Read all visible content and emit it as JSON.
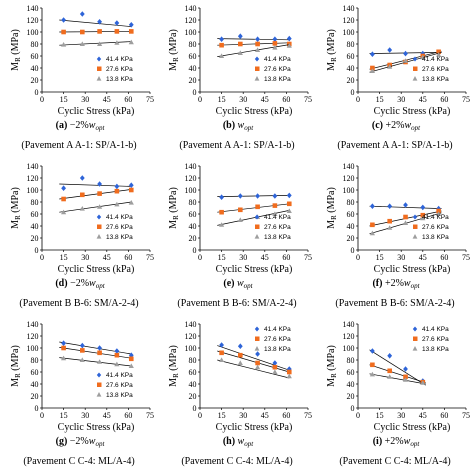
{
  "legend_labels": [
    "41.4 KPa",
    "27.6 KPa",
    "13.8 KPa"
  ],
  "colors": {
    "s41": "#2e64d8",
    "s27": "#f06c1e",
    "s13": "#9e9e9e"
  },
  "x_axis": {
    "label": "Cyclic Stress (kPa)",
    "ticks": [
      "0",
      "15",
      "30",
      "45",
      "60",
      "75"
    ]
  },
  "y_axis": {
    "label_main": "M",
    "label_sub": "R",
    "label_unit": "(MPa)",
    "ticks": [
      "0",
      "20",
      "40",
      "60",
      "80",
      "100",
      "120",
      "140"
    ]
  },
  "chart_data": [
    {
      "type": "scatter",
      "caption_letter": "(a)",
      "caption_text": "−2%",
      "caption_w": "w",
      "caption_sub": "opt",
      "pavement": "(Pavement A A-1: SP/A-1-b)",
      "legend": "bottom-right",
      "xlim": [
        0,
        75
      ],
      "ylim": [
        0,
        140
      ],
      "series": [
        {
          "name": "41.4 KPa",
          "points": [
            [
              15,
              120
            ],
            [
              28,
              130
            ],
            [
              40,
              117
            ],
            [
              52,
              115
            ],
            [
              62,
              112
            ]
          ],
          "trend": [
            [
              12,
              120
            ],
            [
              62,
              109
            ]
          ]
        },
        {
          "name": "27.6 KPa",
          "points": [
            [
              15,
              100
            ],
            [
              28,
              100
            ],
            [
              40,
              101
            ],
            [
              52,
              101
            ],
            [
              62,
              101
            ]
          ],
          "trend": [
            [
              12,
              100
            ],
            [
              62,
              101
            ]
          ]
        },
        {
          "name": "13.8 KPa",
          "points": [
            [
              15,
              79
            ],
            [
              28,
              80
            ],
            [
              40,
              80
            ],
            [
              52,
              82
            ],
            [
              62,
              83
            ]
          ],
          "trend": [
            [
              12,
              78
            ],
            [
              62,
              84
            ]
          ]
        }
      ]
    },
    {
      "type": "scatter",
      "caption_letter": "(b)",
      "caption_text": "",
      "caption_w": "w",
      "caption_sub": "opt",
      "pavement": "(Pavement A A-1: SP/A-1-b)",
      "legend": "bottom-right",
      "xlim": [
        0,
        75
      ],
      "ylim": [
        0,
        140
      ],
      "series": [
        {
          "name": "41.4 KPa",
          "points": [
            [
              15,
              88
            ],
            [
              28,
              93
            ],
            [
              40,
              88
            ],
            [
              52,
              88
            ],
            [
              62,
              89
            ]
          ],
          "trend": [
            [
              12,
              89
            ],
            [
              62,
              87
            ]
          ]
        },
        {
          "name": "27.6 KPa",
          "points": [
            [
              15,
              78
            ],
            [
              28,
              80
            ],
            [
              40,
              80
            ],
            [
              52,
              81
            ],
            [
              62,
              80
            ]
          ],
          "trend": [
            [
              12,
              78
            ],
            [
              62,
              82
            ]
          ]
        },
        {
          "name": "13.8 KPa",
          "points": [
            [
              15,
              60
            ],
            [
              28,
              65
            ],
            [
              40,
              70
            ],
            [
              52,
              74
            ],
            [
              62,
              77
            ]
          ],
          "trend": [
            [
              12,
              59
            ],
            [
              62,
              79
            ]
          ]
        }
      ]
    },
    {
      "type": "scatter",
      "caption_letter": "(c)",
      "caption_text": "+2%",
      "caption_w": "w",
      "caption_sub": "opt",
      "pavement": "(Pavement A A-1: SP/A-1-b)",
      "legend": "bottom-right",
      "xlim": [
        0,
        75
      ],
      "ylim": [
        0,
        140
      ],
      "series": [
        {
          "name": "41.4 KPa",
          "points": [
            [
              10,
              63
            ],
            [
              22,
              70
            ],
            [
              33,
              64
            ],
            [
              45,
              64
            ],
            [
              56,
              65
            ]
          ],
          "trend": [
            [
              8,
              64
            ],
            [
              58,
              66
            ]
          ]
        },
        {
          "name": "27.6 KPa",
          "points": [
            [
              10,
              40
            ],
            [
              22,
              45
            ],
            [
              33,
              50
            ],
            [
              45,
              60
            ],
            [
              56,
              67
            ]
          ],
          "trend": [
            [
              8,
              38
            ],
            [
              58,
              68
            ]
          ]
        },
        {
          "name": "13.8 KPa",
          "points": [
            [
              10,
              35
            ],
            [
              22,
              42
            ],
            [
              33,
              52
            ],
            [
              45,
              58
            ],
            [
              56,
              62
            ]
          ],
          "trend": [
            [
              8,
              33
            ],
            [
              58,
              66
            ]
          ]
        }
      ]
    },
    {
      "type": "scatter",
      "caption_letter": "(d)",
      "caption_text": "−2%",
      "caption_w": "w",
      "caption_sub": "opt",
      "pavement": "(Pavement B B-6: SM/A-2-4)",
      "legend": "bottom-right",
      "xlim": [
        0,
        75
      ],
      "ylim": [
        0,
        140
      ],
      "series": [
        {
          "name": "41.4 KPa",
          "points": [
            [
              15,
              103
            ],
            [
              28,
              120
            ],
            [
              40,
              110
            ],
            [
              52,
              106
            ],
            [
              62,
              108
            ]
          ],
          "trend": [
            [
              12,
              110
            ],
            [
              62,
              106
            ]
          ]
        },
        {
          "name": "27.6 KPa",
          "points": [
            [
              15,
              85
            ],
            [
              28,
              92
            ],
            [
              40,
              94
            ],
            [
              52,
              98
            ],
            [
              62,
              100
            ]
          ],
          "trend": [
            [
              12,
              85
            ],
            [
              62,
              101
            ]
          ]
        },
        {
          "name": "13.8 KPa",
          "points": [
            [
              15,
              63
            ],
            [
              28,
              69
            ],
            [
              40,
              72
            ],
            [
              52,
              76
            ],
            [
              62,
              79
            ]
          ],
          "trend": [
            [
              12,
              63
            ],
            [
              62,
              80
            ]
          ]
        }
      ]
    },
    {
      "type": "scatter",
      "caption_letter": "(e)",
      "caption_text": "",
      "caption_w": "w",
      "caption_sub": "opt",
      "pavement": "(Pavement B B-6: SM/A-2-4)",
      "legend": "bottom-right",
      "xlim": [
        0,
        75
      ],
      "ylim": [
        0,
        140
      ],
      "series": [
        {
          "name": "41.4 KPa",
          "points": [
            [
              15,
              88
            ],
            [
              28,
              90
            ],
            [
              40,
              90
            ],
            [
              52,
              90
            ],
            [
              62,
              91
            ]
          ],
          "trend": [
            [
              12,
              89
            ],
            [
              62,
              91
            ]
          ]
        },
        {
          "name": "27.6 KPa",
          "points": [
            [
              15,
              63
            ],
            [
              28,
              67
            ],
            [
              40,
              72
            ],
            [
              52,
              74
            ],
            [
              62,
              77
            ]
          ],
          "trend": [
            [
              12,
              63
            ],
            [
              62,
              77
            ]
          ]
        },
        {
          "name": "13.8 KPa",
          "points": [
            [
              15,
              42
            ],
            [
              28,
              50
            ],
            [
              40,
              55
            ],
            [
              52,
              60
            ],
            [
              62,
              65
            ]
          ],
          "trend": [
            [
              12,
              41
            ],
            [
              62,
              66
            ]
          ]
        }
      ]
    },
    {
      "type": "scatter",
      "caption_letter": "(f)",
      "caption_text": "+2%",
      "caption_w": "w",
      "caption_sub": "opt",
      "pavement": "(Pavement B B-6: SM/A-2-4)",
      "legend": "bottom-right",
      "xlim": [
        0,
        75
      ],
      "ylim": [
        0,
        140
      ],
      "series": [
        {
          "name": "41.4 KPa",
          "points": [
            [
              10,
              73
            ],
            [
              22,
              73
            ],
            [
              33,
              75
            ],
            [
              45,
              71
            ],
            [
              56,
              69
            ]
          ],
          "trend": [
            [
              8,
              73
            ],
            [
              58,
              69
            ]
          ]
        },
        {
          "name": "27.6 KPa",
          "points": [
            [
              10,
              42
            ],
            [
              22,
              48
            ],
            [
              33,
              55
            ],
            [
              45,
              58
            ],
            [
              56,
              65
            ]
          ],
          "trend": [
            [
              8,
              40
            ],
            [
              58,
              65
            ]
          ]
        },
        {
          "name": "13.8 KPa",
          "points": [
            [
              10,
              28
            ],
            [
              22,
              37
            ],
            [
              33,
              45
            ],
            [
              45,
              53
            ],
            [
              56,
              60
            ]
          ],
          "trend": [
            [
              8,
              27
            ],
            [
              58,
              62
            ]
          ]
        }
      ]
    },
    {
      "type": "scatter",
      "caption_letter": "(g)",
      "caption_text": "−2%",
      "caption_w": "w",
      "caption_sub": "opt",
      "pavement": "(Pavement C C-4: ML/A-4)",
      "legend": "bottom-right",
      "xlim": [
        0,
        75
      ],
      "ylim": [
        0,
        140
      ],
      "series": [
        {
          "name": "41.4 KPa",
          "points": [
            [
              15,
              108
            ],
            [
              28,
              104
            ],
            [
              40,
              100
            ],
            [
              52,
              95
            ],
            [
              62,
              88
            ]
          ],
          "trend": [
            [
              12,
              110
            ],
            [
              62,
              90
            ]
          ]
        },
        {
          "name": "27.6 KPa",
          "points": [
            [
              15,
              100
            ],
            [
              28,
              96
            ],
            [
              40,
              92
            ],
            [
              52,
              88
            ],
            [
              62,
              82
            ]
          ],
          "trend": [
            [
              12,
              101
            ],
            [
              62,
              83
            ]
          ]
        },
        {
          "name": "13.8 KPa",
          "points": [
            [
              15,
              83
            ],
            [
              28,
              80
            ],
            [
              40,
              77
            ],
            [
              52,
              73
            ],
            [
              62,
              70
            ]
          ],
          "trend": [
            [
              12,
              84
            ],
            [
              62,
              70
            ]
          ]
        }
      ]
    },
    {
      "type": "scatter",
      "caption_letter": "(h)",
      "caption_text": "",
      "caption_w": "w",
      "caption_sub": "opt",
      "pavement": "(Pavement C C-4: ML/A-4)",
      "legend": "top-right",
      "xlim": [
        0,
        75
      ],
      "ylim": [
        0,
        140
      ],
      "series": [
        {
          "name": "41.4 KPa",
          "points": [
            [
              15,
              105
            ],
            [
              28,
              103
            ],
            [
              40,
              90
            ],
            [
              52,
              75
            ],
            [
              62,
              65
            ]
          ],
          "trend": [
            [
              12,
              104
            ],
            [
              62,
              63
            ]
          ]
        },
        {
          "name": "27.6 KPa",
          "points": [
            [
              15,
              92
            ],
            [
              28,
              88
            ],
            [
              40,
              75
            ],
            [
              52,
              68
            ],
            [
              62,
              60
            ]
          ],
          "trend": [
            [
              12,
              95
            ],
            [
              62,
              60
            ]
          ]
        },
        {
          "name": "13.8 KPa",
          "points": [
            [
              15,
              80
            ],
            [
              28,
              75
            ],
            [
              40,
              68
            ],
            [
              52,
              60
            ],
            [
              62,
              53
            ]
          ],
          "trend": [
            [
              12,
              80
            ],
            [
              62,
              50
            ]
          ]
        }
      ]
    },
    {
      "type": "scatter",
      "caption_letter": "(i)",
      "caption_text": "+2%",
      "caption_w": "w",
      "caption_sub": "opt",
      "pavement": "(Pavement C C-4: ML/A-4)",
      "legend": "top-right",
      "xlim": [
        0,
        75
      ],
      "ylim": [
        0,
        140
      ],
      "series": [
        {
          "name": "41.4 KPa",
          "points": [
            [
              10,
              95
            ],
            [
              22,
              87
            ],
            [
              33,
              65
            ],
            [
              45,
              45
            ]
          ],
          "trend": [
            [
              8,
              97
            ],
            [
              47,
              38
            ]
          ]
        },
        {
          "name": "27.6 KPa",
          "points": [
            [
              10,
              72
            ],
            [
              22,
              62
            ],
            [
              33,
              52
            ],
            [
              45,
              43
            ]
          ],
          "trend": [
            [
              8,
              72
            ],
            [
              47,
              42
            ]
          ]
        },
        {
          "name": "13.8 KPa",
          "points": [
            [
              10,
              56
            ],
            [
              22,
              52
            ],
            [
              33,
              47
            ],
            [
              45,
              42
            ]
          ],
          "trend": [
            [
              8,
              57
            ],
            [
              47,
              40
            ]
          ]
        }
      ]
    }
  ]
}
